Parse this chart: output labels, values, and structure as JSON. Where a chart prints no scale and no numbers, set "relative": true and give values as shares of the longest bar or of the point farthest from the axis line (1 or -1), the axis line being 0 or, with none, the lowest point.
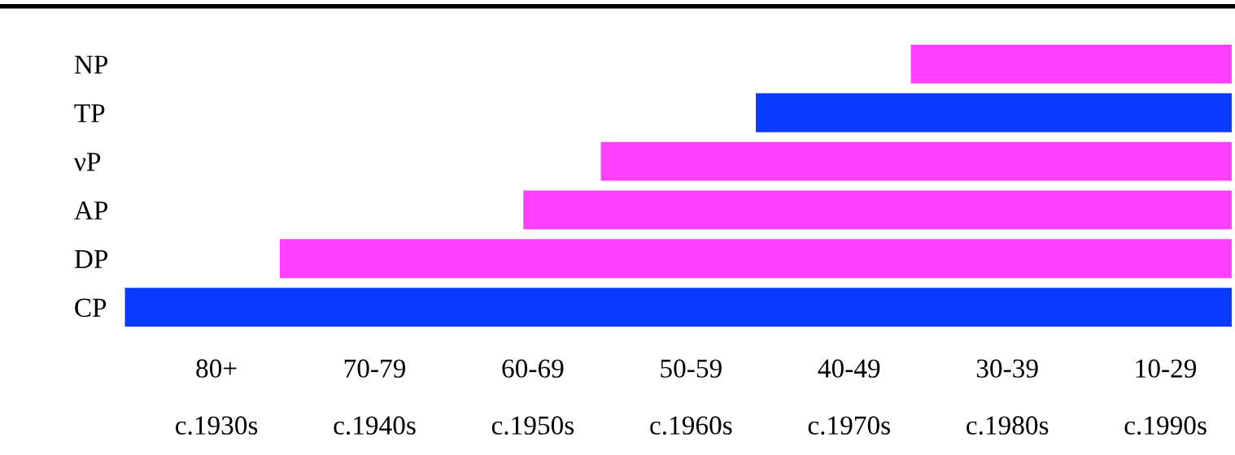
{
  "chart_data": {
    "type": "bar",
    "orientation": "horizontal",
    "relative": true,
    "categories": [
      "NP",
      "TP",
      "νP",
      "AP",
      "DP",
      "CP"
    ],
    "values": [
      0.29,
      0.43,
      0.57,
      0.64,
      0.86,
      1
    ],
    "colors": [
      "#ff40ff",
      "#0a3cff",
      "#ff40ff",
      "#ff40ff",
      "#ff40ff",
      "#0a3cff"
    ],
    "annotations": [
      "80+",
      "70-79",
      "60-69",
      "50-59",
      "40-49",
      "30-39",
      "10-29",
      "c.1930s",
      "c.1940s",
      "c.1950s",
      "c.1960s",
      "c.1970s",
      "c.1980s",
      "c.1990s"
    ]
  }
}
